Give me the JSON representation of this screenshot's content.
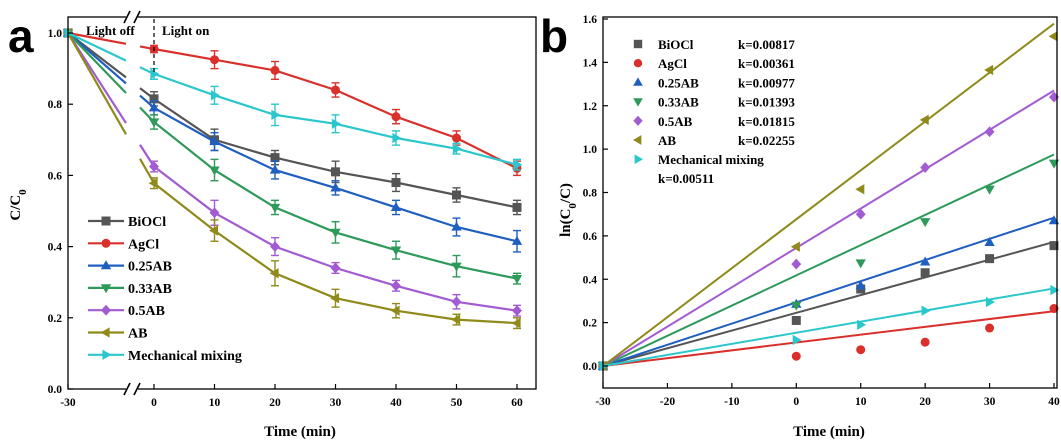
{
  "chart_data": [
    {
      "type": "line",
      "panel_label": "a",
      "xlabel": "Time (min)",
      "ylabel": "C/C0",
      "xlim": [
        -30,
        60
      ],
      "ylim": [
        0.0,
        1.0
      ],
      "x_ticks": [
        "-30",
        "0",
        "10",
        "20",
        "30",
        "40",
        "50",
        "60"
      ],
      "y_ticks": [
        "0.0",
        "0.2",
        "0.4",
        "0.6",
        "0.8",
        "1.0"
      ],
      "legend_position": "bottom-left",
      "annotations": [
        "Light off",
        "Light on"
      ],
      "x": [
        -30,
        0,
        10,
        20,
        30,
        40,
        50,
        60
      ],
      "series": [
        {
          "name": "BiOCl",
          "color": "#555555",
          "marker": "square",
          "values": [
            1.0,
            0.815,
            0.7,
            0.65,
            0.61,
            0.58,
            0.545,
            0.51
          ],
          "errors": [
            0,
            0.02,
            0.03,
            0.02,
            0.03,
            0.025,
            0.02,
            0.02
          ]
        },
        {
          "name": "AgCl",
          "color": "#d9302c",
          "marker": "circle",
          "values": [
            1.0,
            0.955,
            0.925,
            0.895,
            0.84,
            0.765,
            0.705,
            0.62
          ],
          "errors": [
            0,
            0.01,
            0.025,
            0.025,
            0.02,
            0.02,
            0.02,
            0.02
          ]
        },
        {
          "name": "0.25AB",
          "color": "#1f5fbf",
          "marker": "triangle-up",
          "values": [
            1.0,
            0.79,
            0.695,
            0.615,
            0.565,
            0.51,
            0.455,
            0.415
          ],
          "errors": [
            0,
            0.02,
            0.025,
            0.025,
            0.02,
            0.02,
            0.025,
            0.03
          ]
        },
        {
          "name": "0.33AB",
          "color": "#2e9a5a",
          "marker": "triangle-down",
          "values": [
            1.0,
            0.75,
            0.615,
            0.51,
            0.44,
            0.39,
            0.345,
            0.31
          ],
          "errors": [
            0,
            0.02,
            0.03,
            0.02,
            0.03,
            0.025,
            0.03,
            0.015
          ]
        },
        {
          "name": "0.5AB",
          "color": "#a25bd1",
          "marker": "diamond",
          "values": [
            1.0,
            0.625,
            0.495,
            0.4,
            0.34,
            0.29,
            0.245,
            0.22
          ],
          "errors": [
            0,
            0.015,
            0.035,
            0.025,
            0.015,
            0.015,
            0.02,
            0.015
          ]
        },
        {
          "name": "AB",
          "color": "#8f8a1a",
          "marker": "triangle-left",
          "values": [
            1.0,
            0.578,
            0.445,
            0.325,
            0.255,
            0.22,
            0.195,
            0.185
          ],
          "errors": [
            0,
            0.015,
            0.03,
            0.035,
            0.025,
            0.02,
            0.015,
            0.015
          ]
        },
        {
          "name": "Mechanical mixing",
          "color": "#2bc7cc",
          "marker": "triangle-right",
          "values": [
            1.0,
            0.885,
            0.825,
            0.77,
            0.745,
            0.705,
            0.675,
            0.63
          ],
          "errors": [
            0,
            0.015,
            0.025,
            0.03,
            0.025,
            0.02,
            0.015,
            0.015
          ]
        }
      ]
    },
    {
      "type": "scatter",
      "panel_label": "b",
      "xlabel": "Time (min)",
      "ylabel": "ln(C0/C)",
      "xlim": [
        -30,
        40
      ],
      "ylim": [
        -0.1,
        1.6
      ],
      "x_ticks": [
        "-30",
        "-20",
        "-10",
        "0",
        "10",
        "20",
        "30",
        "40"
      ],
      "y_ticks": [
        "0.0",
        "0.2",
        "0.4",
        "0.6",
        "0.8",
        "1.0",
        "1.2",
        "1.4",
        "1.6"
      ],
      "legend_position": "top-left",
      "x": [
        -30,
        0,
        10,
        20,
        30,
        40
      ],
      "series": [
        {
          "name": "BiOCl",
          "k_label": "k=0.00817",
          "k": 0.00817,
          "color": "#555555",
          "marker": "square",
          "values": [
            0.0,
            0.21,
            0.355,
            0.43,
            0.495,
            0.555
          ]
        },
        {
          "name": "AgCl",
          "k_label": "k=0.00361",
          "k": 0.00361,
          "color": "#d9302c",
          "marker": "circle",
          "values": [
            0.0,
            0.045,
            0.075,
            0.11,
            0.175,
            0.265
          ]
        },
        {
          "name": "0.25AB",
          "k_label": "k=0.00977",
          "k": 0.00977,
          "color": "#1f5fbf",
          "marker": "triangle-up",
          "values": [
            0.0,
            0.285,
            0.37,
            0.48,
            0.57,
            0.67
          ]
        },
        {
          "name": "0.33AB",
          "k_label": "k=0.01393",
          "k": 0.01393,
          "color": "#2e9a5a",
          "marker": "triangle-down",
          "values": [
            0.0,
            0.28,
            0.475,
            0.665,
            0.815,
            0.935
          ]
        },
        {
          "name": "0.5AB",
          "k_label": "k=0.01815",
          "k": 0.01815,
          "color": "#a25bd1",
          "marker": "diamond",
          "values": [
            0.0,
            0.47,
            0.7,
            0.915,
            1.08,
            1.24
          ]
        },
        {
          "name": "AB",
          "k_label": "k=0.02255",
          "k": 0.02255,
          "color": "#8f8a1a",
          "marker": "triangle-left",
          "values": [
            0.0,
            0.55,
            0.815,
            1.135,
            1.365,
            1.52
          ]
        },
        {
          "name": "Mechanical mixing",
          "k_label": "k=0.00511",
          "k": 0.00511,
          "color": "#2bc7cc",
          "marker": "triangle-right",
          "values": [
            0.0,
            0.12,
            0.19,
            0.255,
            0.295,
            0.35
          ]
        }
      ]
    }
  ]
}
